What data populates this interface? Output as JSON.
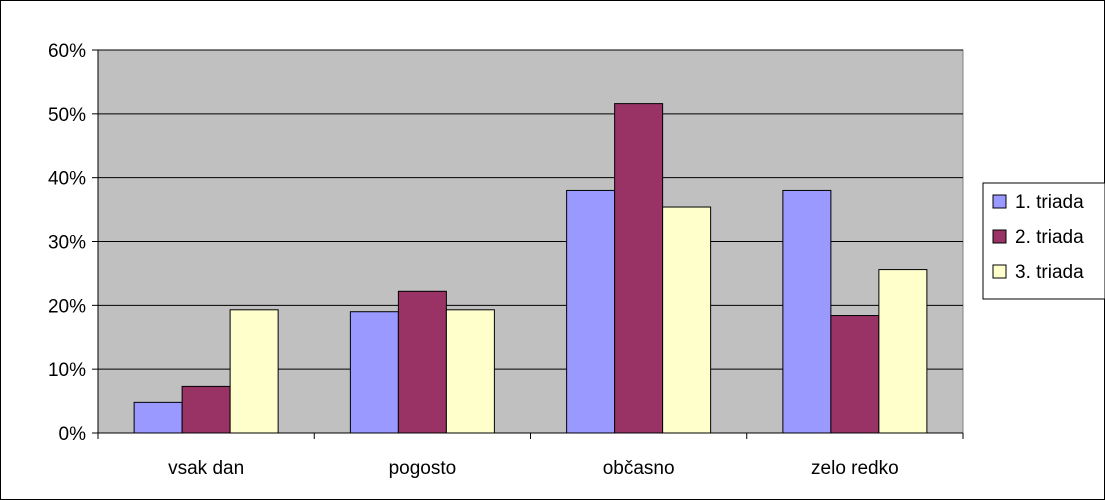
{
  "chart_data": {
    "type": "bar",
    "categories": [
      "vsak dan",
      "pogosto",
      "občasno",
      "zelo redko"
    ],
    "series": [
      {
        "name": "1. triada",
        "color": "#9999ff",
        "values": [
          0.048,
          0.19,
          0.38,
          0.38
        ]
      },
      {
        "name": "2. triada",
        "color": "#993366",
        "values": [
          0.073,
          0.222,
          0.516,
          0.184
        ]
      },
      {
        "name": "3. triada",
        "color": "#ffffcc",
        "values": [
          0.193,
          0.193,
          0.354,
          0.256
        ]
      }
    ],
    "ylim": [
      0,
      0.6
    ],
    "yticks": [
      "0%",
      "10%",
      "20%",
      "30%",
      "40%",
      "50%",
      "60%"
    ],
    "plot_background": "#c0c0c0",
    "grid": true,
    "legend_position": "right"
  }
}
